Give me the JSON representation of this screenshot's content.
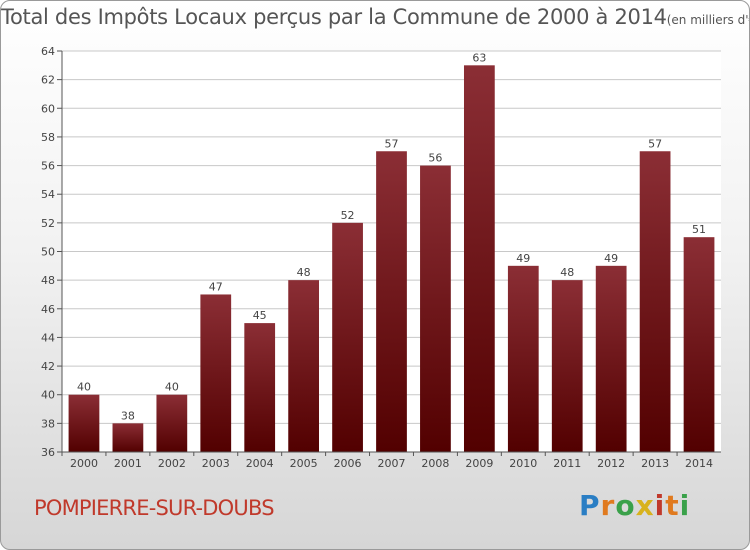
{
  "title": {
    "main": "Total des Impôts Locaux perçus par la Commune de 2000 à 2014",
    "unit": "(en milliers d'€)"
  },
  "commune": "POMPIERRE-SUR-DOUBS",
  "logo": {
    "text": "Proxiti"
  },
  "colors": {
    "bar_top": "#8b2e35",
    "bar_bottom": "#520000",
    "axis": "#555555",
    "grid": "#c8c8c8"
  },
  "chart_data": {
    "type": "bar",
    "title": "Total des Impôts Locaux perçus par la Commune de 2000 à 2014",
    "xlabel": "",
    "ylabel": "",
    "categories": [
      "2000",
      "2001",
      "2002",
      "2003",
      "2004",
      "2005",
      "2006",
      "2007",
      "2008",
      "2009",
      "2010",
      "2011",
      "2012",
      "2013",
      "2014"
    ],
    "values": [
      40,
      38,
      40,
      47,
      45,
      48,
      52,
      57,
      56,
      63,
      49,
      48,
      49,
      57,
      51
    ],
    "ylim": [
      36,
      64
    ],
    "yticks": [
      36,
      38,
      40,
      42,
      44,
      46,
      48,
      50,
      52,
      54,
      56,
      58,
      60,
      62,
      64
    ],
    "grid": true
  }
}
